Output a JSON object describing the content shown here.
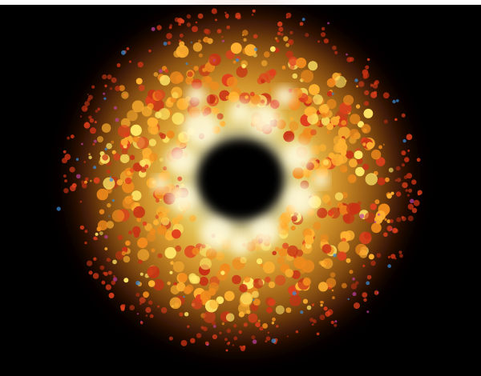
{
  "image": {
    "subject": "",
    "colors": {
      "background": "#000000",
      "top_strip": "#ffffff",
      "core_white": "#fffbe0",
      "hot_yellow": "#ffe566",
      "bright_orange": "#ffb030",
      "mid_orange": "#f08a1c",
      "deep_red": "#c83214",
      "ember_red": "#e0401c",
      "spark_cyan": "#3a8fd8",
      "spark_magenta": "#c040a0"
    }
  }
}
